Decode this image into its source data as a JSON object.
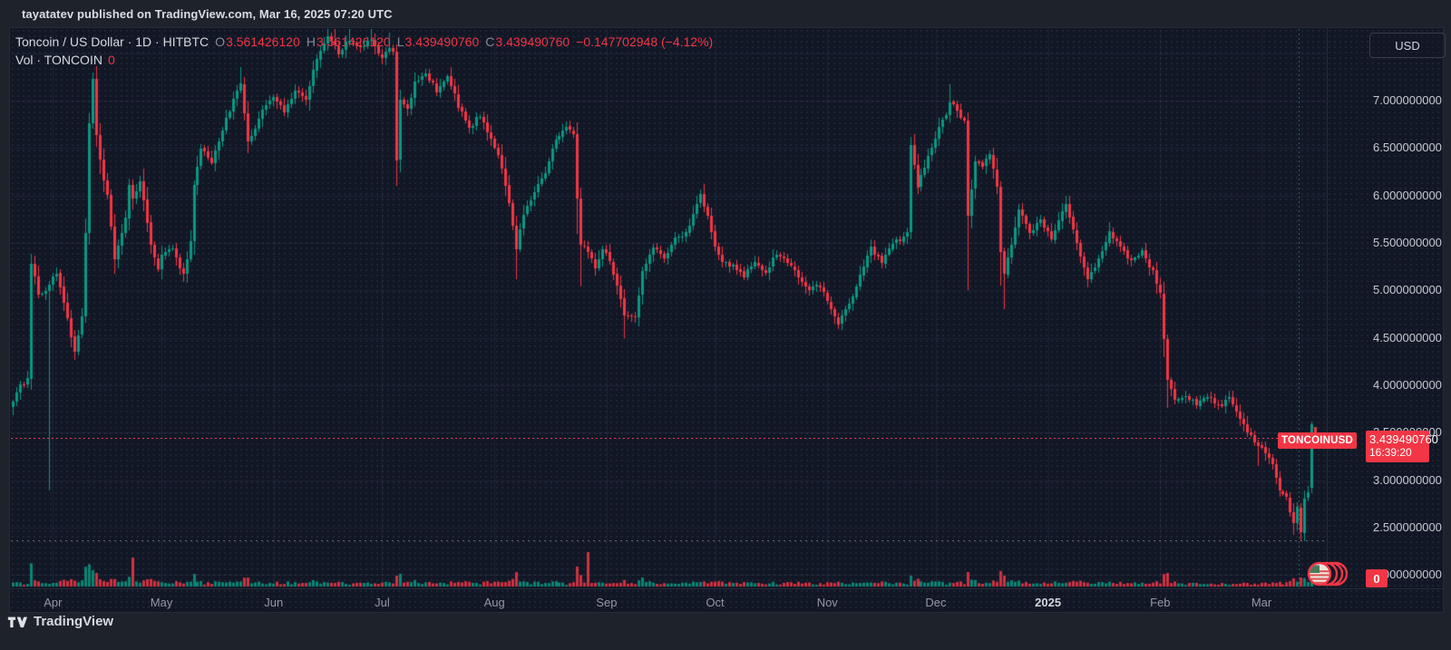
{
  "header": {
    "published_line": "tayatatev published on TradingView.com, Mar 16, 2025 07:20 UTC"
  },
  "legend": {
    "symbol_line": "Toncoin / US Dollar · 1D · HITBTC",
    "ohlc": [
      {
        "label": "O",
        "value": "3.561426120"
      },
      {
        "label": "H",
        "value": "3.561426120"
      },
      {
        "label": "L",
        "value": "3.439490760"
      },
      {
        "label": "C",
        "value": "3.439490760"
      }
    ],
    "change": "−0.147702948 (−4.12%)",
    "volume_label": "Vol · TONCOIN",
    "volume_value": "0"
  },
  "price_scale": {
    "currency_button": "USD",
    "ticks": [
      {
        "label": "7.000000000",
        "value": 7.0
      },
      {
        "label": "6.500000000",
        "value": 6.5
      },
      {
        "label": "6.000000000",
        "value": 6.0
      },
      {
        "label": "5.500000000",
        "value": 5.5
      },
      {
        "label": "5.000000000",
        "value": 5.0
      },
      {
        "label": "4.500000000",
        "value": 4.5
      },
      {
        "label": "4.000000000",
        "value": 4.0
      },
      {
        "label": "3.500000000",
        "value": 3.5
      },
      {
        "label": "3.000000000",
        "value": 3.0
      },
      {
        "label": "2.500000000",
        "value": 2.5
      },
      {
        "label": "2.000000000",
        "value": 2.0
      }
    ],
    "price_label": {
      "symbol": "TONCOINUSD",
      "price": "3.439490760",
      "countdown": "16:39:20"
    },
    "volume_axis_label": "0"
  },
  "time_scale": {
    "labels": [
      {
        "text": "Apr",
        "day": 11
      },
      {
        "text": "May",
        "day": 41
      },
      {
        "text": "Jun",
        "day": 72
      },
      {
        "text": "Jul",
        "day": 102
      },
      {
        "text": "Aug",
        "day": 133
      },
      {
        "text": "Sep",
        "day": 164
      },
      {
        "text": "Oct",
        "day": 194
      },
      {
        "text": "Nov",
        "day": 225
      },
      {
        "text": "Dec",
        "day": 255
      },
      {
        "text": "2025",
        "day": 286,
        "emphasis": true
      },
      {
        "text": "Feb",
        "day": 317
      },
      {
        "text": "Mar",
        "day": 345
      }
    ]
  },
  "footer": {
    "brand": "TradingView"
  },
  "colors": {
    "up": "#089981",
    "down": "#f23645",
    "accent": "#f23645",
    "chart_bg": "#121726",
    "outer_bg": "#1e222b",
    "grid": "rgba(160,172,196,0.085)",
    "axis_text": "#c6c9d0",
    "legend_text": "#d6d9df",
    "muted_text": "#9598a1"
  },
  "chart_data": {
    "type": "candlestick",
    "title": "Toncoin / US Dollar",
    "symbol": "TONCOINUSD",
    "exchange": "HITBTC",
    "interval": "1D",
    "start_date": "2024-03-21",
    "end_date": "2025-03-16",
    "num_days": 361,
    "price_axis": {
      "visible_range": [
        1.87,
        7.75
      ],
      "tick_step": 0.5,
      "scale": "linear",
      "currency": "USD"
    },
    "last_bar": {
      "open": "3.561426120",
      "high": "3.561426120",
      "low": "3.439490760",
      "close": "3.439490760",
      "change": "−0.147702948",
      "change_pct": "−4.12%",
      "volume": "0",
      "countdown": "16:39:20"
    },
    "current_price_line": 3.43949076,
    "dotted_low_level": 2.36,
    "dashed_vertical_day": 356,
    "close_keypoints": [
      [
        0,
        3.85
      ],
      [
        2,
        4.0
      ],
      [
        4,
        4.05
      ],
      [
        5,
        5.3
      ],
      [
        7,
        4.95
      ],
      [
        9,
        5.0
      ],
      [
        10,
        5.05
      ],
      [
        12,
        5.2
      ],
      [
        14,
        4.85
      ],
      [
        17,
        4.35
      ],
      [
        19,
        4.7
      ],
      [
        20,
        5.6
      ],
      [
        21,
        6.75
      ],
      [
        22,
        7.2
      ],
      [
        23,
        6.65
      ],
      [
        24,
        6.35
      ],
      [
        26,
        6.0
      ],
      [
        28,
        5.35
      ],
      [
        31,
        5.75
      ],
      [
        32,
        6.1
      ],
      [
        33,
        5.95
      ],
      [
        35,
        6.15
      ],
      [
        38,
        5.5
      ],
      [
        40,
        5.2
      ],
      [
        41,
        5.35
      ],
      [
        44,
        5.45
      ],
      [
        47,
        5.15
      ],
      [
        49,
        5.5
      ],
      [
        50,
        6.1
      ],
      [
        52,
        6.5
      ],
      [
        55,
        6.35
      ],
      [
        58,
        6.7
      ],
      [
        61,
        7.0
      ],
      [
        63,
        7.2
      ],
      [
        65,
        6.55
      ],
      [
        67,
        6.7
      ],
      [
        69,
        6.9
      ],
      [
        72,
        7.05
      ],
      [
        75,
        6.9
      ],
      [
        78,
        7.1
      ],
      [
        81,
        7.0
      ],
      [
        84,
        7.45
      ],
      [
        87,
        7.7
      ],
      [
        90,
        7.5
      ],
      [
        93,
        7.65
      ],
      [
        96,
        7.55
      ],
      [
        99,
        7.65
      ],
      [
        102,
        7.45
      ],
      [
        104,
        7.55
      ],
      [
        105,
        7.5
      ],
      [
        106,
        6.35
      ],
      [
        107,
        7.0
      ],
      [
        109,
        6.9
      ],
      [
        111,
        7.2
      ],
      [
        114,
        7.3
      ],
      [
        117,
        7.1
      ],
      [
        120,
        7.25
      ],
      [
        123,
        6.95
      ],
      [
        126,
        6.7
      ],
      [
        129,
        6.85
      ],
      [
        132,
        6.6
      ],
      [
        134,
        6.45
      ],
      [
        136,
        6.1
      ],
      [
        138,
        5.7
      ],
      [
        139,
        5.45
      ],
      [
        141,
        5.8
      ],
      [
        144,
        6.05
      ],
      [
        147,
        6.25
      ],
      [
        150,
        6.6
      ],
      [
        153,
        6.7
      ],
      [
        155,
        6.65
      ],
      [
        156,
        5.95
      ],
      [
        157,
        5.5
      ],
      [
        159,
        5.4
      ],
      [
        161,
        5.25
      ],
      [
        163,
        5.45
      ],
      [
        165,
        5.3
      ],
      [
        167,
        5.05
      ],
      [
        169,
        4.75
      ],
      [
        172,
        4.7
      ],
      [
        174,
        5.2
      ],
      [
        177,
        5.45
      ],
      [
        180,
        5.35
      ],
      [
        183,
        5.55
      ],
      [
        186,
        5.6
      ],
      [
        189,
        5.9
      ],
      [
        190,
        6.0
      ],
      [
        192,
        5.8
      ],
      [
        194,
        5.45
      ],
      [
        196,
        5.3
      ],
      [
        199,
        5.25
      ],
      [
        202,
        5.15
      ],
      [
        205,
        5.3
      ],
      [
        208,
        5.2
      ],
      [
        211,
        5.4
      ],
      [
        214,
        5.3
      ],
      [
        217,
        5.15
      ],
      [
        220,
        5.0
      ],
      [
        223,
        5.05
      ],
      [
        225,
        4.9
      ],
      [
        228,
        4.65
      ],
      [
        231,
        4.85
      ],
      [
        234,
        5.15
      ],
      [
        237,
        5.45
      ],
      [
        240,
        5.3
      ],
      [
        243,
        5.5
      ],
      [
        246,
        5.55
      ],
      [
        247,
        5.6
      ],
      [
        248,
        6.55
      ],
      [
        250,
        6.1
      ],
      [
        252,
        6.3
      ],
      [
        254,
        6.5
      ],
      [
        256,
        6.7
      ],
      [
        258,
        6.85
      ],
      [
        259,
        7.0
      ],
      [
        261,
        6.9
      ],
      [
        263,
        6.78
      ],
      [
        264,
        5.8
      ],
      [
        266,
        6.35
      ],
      [
        268,
        6.3
      ],
      [
        270,
        6.45
      ],
      [
        272,
        6.1
      ],
      [
        273,
        5.4
      ],
      [
        274,
        5.2
      ],
      [
        276,
        5.5
      ],
      [
        278,
        5.85
      ],
      [
        281,
        5.6
      ],
      [
        284,
        5.75
      ],
      [
        287,
        5.55
      ],
      [
        289,
        5.75
      ],
      [
        291,
        5.9
      ],
      [
        294,
        5.5
      ],
      [
        297,
        5.1
      ],
      [
        300,
        5.35
      ],
      [
        303,
        5.6
      ],
      [
        306,
        5.45
      ],
      [
        309,
        5.3
      ],
      [
        312,
        5.4
      ],
      [
        315,
        5.2
      ],
      [
        317,
        4.95
      ],
      [
        318,
        4.5
      ],
      [
        319,
        4.05
      ],
      [
        321,
        3.85
      ],
      [
        324,
        3.9
      ],
      [
        327,
        3.8
      ],
      [
        330,
        3.9
      ],
      [
        333,
        3.78
      ],
      [
        336,
        3.85
      ],
      [
        338,
        3.7
      ],
      [
        341,
        3.5
      ],
      [
        344,
        3.38
      ],
      [
        346,
        3.3
      ],
      [
        348,
        3.15
      ],
      [
        350,
        2.9
      ],
      [
        352,
        2.8
      ],
      [
        354,
        2.55
      ],
      [
        355,
        2.7
      ],
      [
        356,
        2.45
      ],
      [
        357,
        2.8
      ],
      [
        358,
        2.85
      ],
      [
        359,
        3.587
      ],
      [
        360,
        3.43949076
      ]
    ],
    "bar_overrides": {
      "10": {
        "l": 2.89
      },
      "22": {
        "h": 7.3
      },
      "63": {
        "h": 7.35
      },
      "87": {
        "h": 8.0
      },
      "89": {
        "h": 7.9
      },
      "93": {
        "h": 7.85
      },
      "99": {
        "h": 7.8
      },
      "104": {
        "h": 7.72
      },
      "106": {
        "l": 6.1
      },
      "139": {
        "l": 5.12
      },
      "156": {
        "l": 5.6
      },
      "157": {
        "l": 5.04
      },
      "169": {
        "l": 4.5
      },
      "248": {
        "h": 6.62
      },
      "259": {
        "h": 7.17
      },
      "264": {
        "l": 5.0
      },
      "273": {
        "l": 5.05
      },
      "274": {
        "l": 4.8
      },
      "291": {
        "h": 6.0
      },
      "318": {
        "l": 4.3
      },
      "319": {
        "l": 3.76
      },
      "344": {
        "l": 3.15
      },
      "354": {
        "l": 2.42
      },
      "356": {
        "l": 2.36
      },
      "359": {
        "o": 2.92,
        "h": 3.62,
        "l": 2.86,
        "c": 3.587193708
      },
      "360": {
        "o": 3.56142612,
        "h": 3.56142612,
        "l": 3.43949076,
        "c": 3.43949076
      }
    },
    "volume_spikes": {
      "22": 18,
      "33": 32,
      "106": 12,
      "139": 16,
      "156": 22,
      "159": 38,
      "174": 10,
      "248": 12,
      "264": 16,
      "274": 12,
      "319": 15,
      "354": 9,
      "356": 10,
      "359": 12,
      "360": 0
    }
  }
}
